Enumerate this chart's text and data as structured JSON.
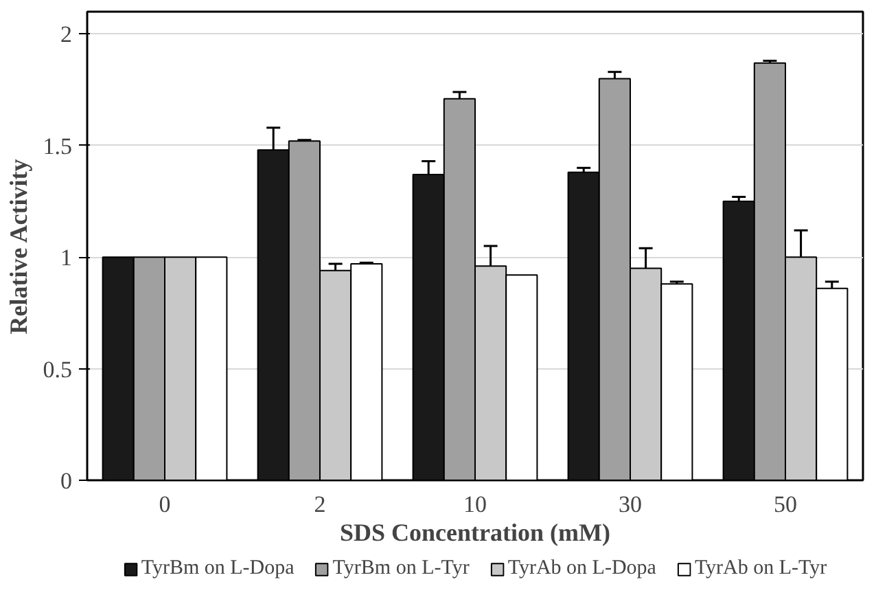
{
  "chart_data": {
    "type": "bar",
    "xlabel": "SDS Concentration (mM)",
    "ylabel": "Relative Activity",
    "categories": [
      "0",
      "2",
      "10",
      "30",
      "50"
    ],
    "series": [
      {
        "name": "TyrBm on L-Dopa",
        "color": "#1a1a1a",
        "values": [
          1,
          1.48,
          1.37,
          1.38,
          1.25
        ],
        "errors": [
          null,
          0.1,
          0.06,
          0.02,
          0.02
        ]
      },
      {
        "name": "TyrBm on L-Tyr",
        "color": "#a0a0a0",
        "values": [
          1,
          1.52,
          1.71,
          1.8,
          1.87
        ],
        "errors": [
          null,
          0.005,
          0.03,
          0.03,
          0.01
        ]
      },
      {
        "name": "TyrAb on L-Dopa",
        "color": "#c8c8c8",
        "values": [
          1,
          0.94,
          0.96,
          0.95,
          1.0
        ],
        "errors": [
          null,
          0.03,
          0.09,
          0.09,
          0.12
        ]
      },
      {
        "name": "TyrAb on L-Tyr",
        "color": "#ffffff",
        "values": [
          1,
          0.97,
          0.92,
          0.88,
          0.86
        ],
        "errors": [
          null,
          0.005,
          null,
          0.01,
          0.03
        ]
      }
    ],
    "ylim": [
      0,
      2.1
    ],
    "yticks": [
      0,
      0.5,
      1,
      1.5,
      2
    ],
    "grid": "y",
    "legend": "bottom"
  }
}
